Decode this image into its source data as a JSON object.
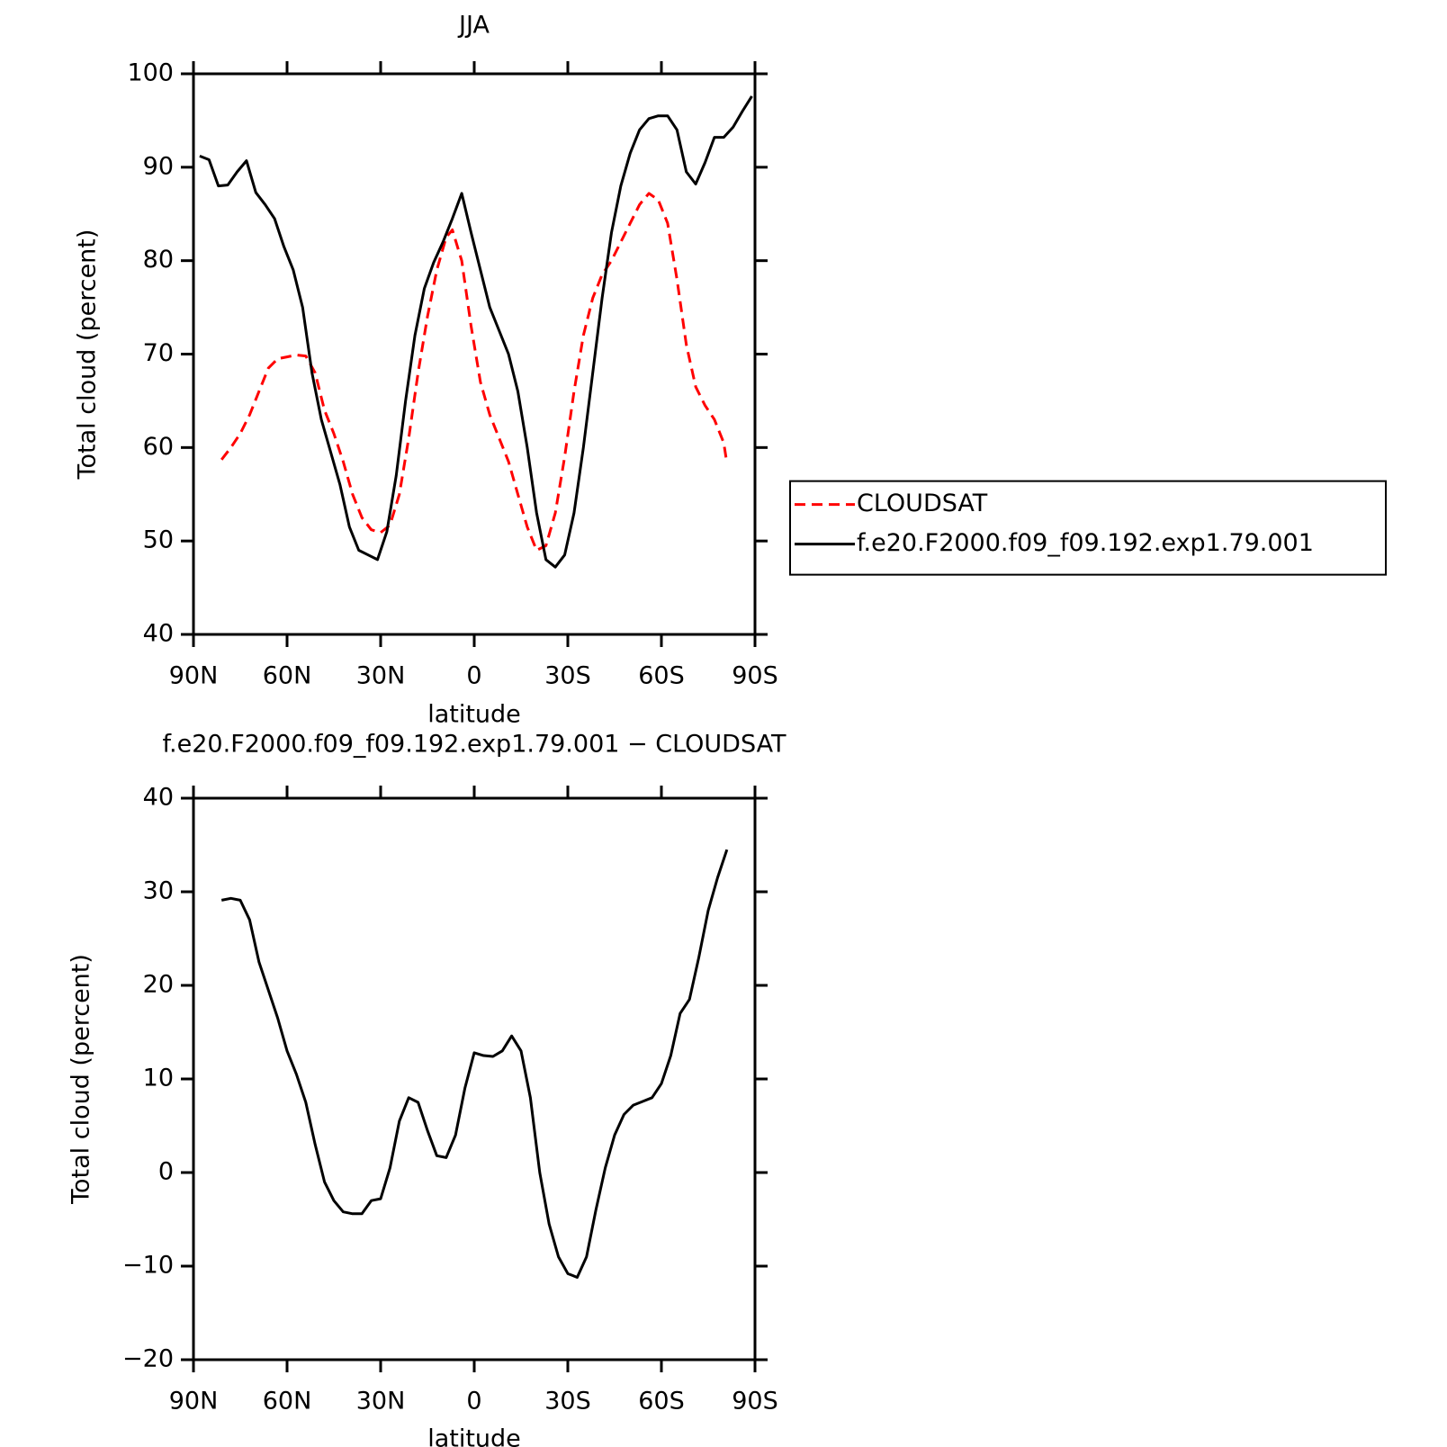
{
  "chart_data": [
    {
      "type": "line",
      "title": "JJA",
      "xlabel": "latitude",
      "ylabel": "Total cloud (percent)",
      "xlim": [
        90,
        -90
      ],
      "ylim": [
        40,
        100
      ],
      "xticks": [
        {
          "value": 90,
          "label": "90N"
        },
        {
          "value": 60,
          "label": "60N"
        },
        {
          "value": 30,
          "label": "30N"
        },
        0,
        {
          "value": -30,
          "label": "30S"
        },
        {
          "value": -60,
          "label": "60S"
        },
        {
          "value": -90,
          "label": "90S"
        }
      ],
      "yticks": [
        40,
        50,
        60,
        70,
        80,
        90,
        100
      ],
      "legend": "right",
      "series": [
        {
          "name": "CLOUDSAT",
          "color": "#ff0000",
          "dash": true,
          "x": [
            81,
            78,
            75,
            72,
            69,
            66,
            63,
            60,
            57,
            54,
            51,
            48,
            45,
            42,
            39,
            36,
            33,
            30,
            27,
            24,
            21,
            18,
            15,
            12,
            9,
            7,
            4,
            1,
            -2,
            -5,
            -8,
            -11,
            -14,
            -17,
            -20,
            -23,
            -26,
            -29,
            -32,
            -35,
            -38,
            -41,
            -44,
            -47,
            -50,
            -53,
            -56,
            -59,
            -62,
            -65,
            -68,
            -71,
            -74,
            -77,
            -80,
            -81
          ],
          "values": [
            58.7,
            60,
            61.5,
            63.5,
            66,
            68.5,
            69.5,
            69.7,
            69.9,
            69.8,
            68,
            64,
            61.5,
            58.5,
            55,
            52.5,
            51.2,
            50.9,
            51.7,
            55,
            61,
            68,
            74,
            79,
            82.5,
            83.3,
            80,
            73,
            67,
            63.5,
            61,
            58.5,
            55,
            51.5,
            49,
            49.5,
            53,
            59,
            66,
            72,
            76,
            78.5,
            80,
            82,
            84,
            86,
            87.2,
            86.5,
            84,
            78,
            71,
            66.5,
            64.5,
            63,
            60.5,
            58.3
          ]
        },
        {
          "name": "f.e20.F2000.f09_f09.192.exp1.79.001",
          "color": "#000000",
          "dash": false,
          "x": [
            88,
            85,
            82,
            79,
            76,
            73,
            70,
            67,
            64,
            61,
            58,
            55,
            52,
            49,
            46,
            43,
            40,
            37,
            34,
            31,
            28,
            25,
            22,
            19,
            16,
            13,
            10,
            7,
            4,
            1,
            -2,
            -5,
            -8,
            -11,
            -14,
            -17,
            -20,
            -23,
            -26,
            -29,
            -32,
            -35,
            -38,
            -41,
            -44,
            -47,
            -50,
            -53,
            -56,
            -59,
            -62,
            -65,
            -68,
            -71,
            -74,
            -77,
            -80,
            -83,
            -86,
            -89
          ],
          "values": [
            91.2,
            90.8,
            88,
            88.1,
            89.5,
            90.7,
            87.3,
            86,
            84.5,
            81.5,
            79,
            75,
            68,
            63,
            59.5,
            56,
            51.5,
            49,
            48.5,
            48,
            51,
            57,
            65,
            72,
            77,
            79.8,
            82,
            84.5,
            87.2,
            83,
            79,
            75,
            72.5,
            70,
            66,
            60,
            53,
            48,
            47.2,
            48.5,
            53,
            60,
            68,
            76,
            83,
            88,
            91.5,
            94,
            95.2,
            95.5,
            95.5,
            94,
            89.5,
            88.2,
            90.5,
            93.2,
            93.2,
            94.3,
            96,
            97.6
          ]
        }
      ]
    },
    {
      "type": "line",
      "title": "f.e20.F2000.f09_f09.192.exp1.79.001 − CLOUDSAT",
      "xlabel": "latitude",
      "ylabel": "Total cloud (percent)",
      "xlim": [
        90,
        -90
      ],
      "ylim": [
        -20,
        40
      ],
      "xticks": [
        {
          "value": 90,
          "label": "90N"
        },
        {
          "value": 60,
          "label": "60N"
        },
        {
          "value": 30,
          "label": "30N"
        },
        0,
        {
          "value": -30,
          "label": "30S"
        },
        {
          "value": -60,
          "label": "60S"
        },
        {
          "value": -90,
          "label": "90S"
        }
      ],
      "yticks": [
        {
          "value": -20,
          "label": "−20"
        },
        {
          "value": -10,
          "label": "−10"
        },
        0,
        10,
        20,
        30,
        40
      ],
      "series": [
        {
          "color": "#000000",
          "dash": false,
          "x": [
            81,
            78,
            75,
            72,
            69,
            66,
            63,
            60,
            57,
            54,
            51,
            48,
            45,
            42,
            39,
            36,
            33,
            30,
            27,
            24,
            21,
            18,
            15,
            12,
            9,
            6,
            3,
            0,
            -3,
            -6,
            -9,
            -12,
            -15,
            -18,
            -21,
            -24,
            -27,
            -30,
            -33,
            -36,
            -39,
            -42,
            -45,
            -48,
            -51,
            -54,
            -57,
            -60,
            -63,
            -66,
            -69,
            -72,
            -75,
            -78,
            -81
          ],
          "values": [
            29.1,
            29.3,
            29.1,
            27,
            22.5,
            19.5,
            16.5,
            13,
            10.5,
            7.5,
            3,
            -1,
            -3,
            -4.2,
            -4.4,
            -4.4,
            -3,
            -2.8,
            0.5,
            5.5,
            8,
            7.5,
            4.5,
            1.8,
            1.6,
            4,
            9,
            12.8,
            12.5,
            12.4,
            13,
            14.6,
            13,
            8,
            0,
            -5.5,
            -9,
            -10.8,
            -11.2,
            -9,
            -4,
            0.5,
            4,
            6.2,
            7.2,
            7.6,
            8,
            9.5,
            12.5,
            17,
            18.5,
            23,
            28,
            31.5,
            34.5
          ]
        }
      ]
    }
  ]
}
